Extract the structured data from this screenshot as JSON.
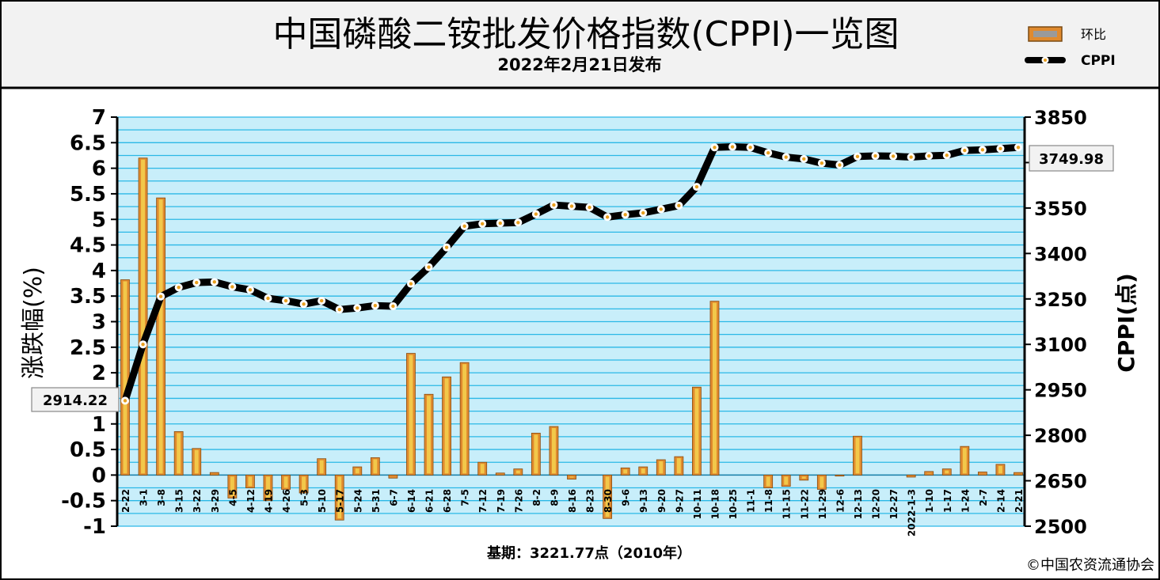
{
  "header": {
    "title": "中国磷酸二铵批发价格指数(CPPI)一览图",
    "subtitle": "2022年2月21日发布"
  },
  "legend": {
    "bar_label": "环比",
    "line_label": "CPPI",
    "position": "top-right"
  },
  "footer": {
    "base_period": "基期：3221.77点（2010年）",
    "copyright": "©中国农资流通协会"
  },
  "colors": {
    "plot_bg": "#c8eefa",
    "grid": "#2bb8e6",
    "bar_fill": "#e08a2e",
    "bar_inner": "#f2c84a",
    "line": "#000000",
    "marker_fill": "#ffffff",
    "marker_dot": "#e8a020"
  },
  "chart_data": {
    "type": "bar+line",
    "xlabels": [
      "2-22",
      "3-1",
      "3-8",
      "3-15",
      "3-22",
      "3-29",
      "4-5",
      "4-12",
      "4-19",
      "4-26",
      "5-3",
      "5-10",
      "5-17",
      "5-24",
      "5-31",
      "6-7",
      "6-14",
      "6-21",
      "6-28",
      "7-5",
      "7-12",
      "7-19",
      "7-26",
      "8-2",
      "8-9",
      "8-16",
      "8-23",
      "8-30",
      "9-6",
      "9-13",
      "9-20",
      "9-27",
      "10-11",
      "10-18",
      "10-25",
      "11-1",
      "11-8",
      "11-15",
      "11-22",
      "11-29",
      "12-6",
      "12-13",
      "12-20",
      "12-27",
      "2022-1-3",
      "1-10",
      "1-17",
      "1-24",
      "2-7",
      "2-14",
      "2-21"
    ],
    "series": [
      {
        "name": "环比",
        "axis": "left",
        "values": [
          3.82,
          6.2,
          5.42,
          0.85,
          0.52,
          0.05,
          -0.45,
          -0.25,
          -0.5,
          -0.28,
          -0.35,
          0.32,
          -0.88,
          0.16,
          0.34,
          -0.06,
          2.38,
          1.58,
          1.92,
          2.2,
          0.25,
          0.04,
          0.12,
          0.82,
          0.95,
          -0.08,
          0,
          -0.85,
          0.14,
          0.16,
          0.3,
          0.36,
          1.72,
          3.4,
          0,
          0,
          -0.25,
          -0.22,
          -0.1,
          -0.28,
          -0.02,
          0.76,
          0,
          0,
          -0.04,
          0.07,
          0.12,
          0.56,
          0.06,
          0.21,
          0.05
        ]
      },
      {
        "name": "CPPI",
        "axis": "right",
        "values": [
          2914.22,
          3100,
          3258,
          3288,
          3304,
          3306,
          3290,
          3280,
          3252,
          3244,
          3233,
          3244,
          3215,
          3220,
          3228,
          3226,
          3300,
          3355,
          3420,
          3490,
          3498,
          3500,
          3502,
          3530,
          3560,
          3556,
          3552,
          3520,
          3528,
          3534,
          3546,
          3558,
          3620,
          3750,
          3752,
          3750,
          3732,
          3718,
          3712,
          3698,
          3692,
          3720,
          3722,
          3721,
          3718,
          3722,
          3724,
          3740,
          3742,
          3746,
          3749.98
        ]
      }
    ],
    "left_axis": {
      "label": "涨跌幅(%)",
      "range": [
        -1,
        7
      ],
      "ticks": [
        "7",
        "6.5",
        "6",
        "5.5",
        "5",
        "4.5",
        "4",
        "3.5",
        "3",
        "2.5",
        "2",
        "1.5",
        "1",
        "0.5",
        "0",
        "-0.5",
        "-1"
      ]
    },
    "right_axis": {
      "label": "CPPI(点)",
      "range": [
        2500,
        3850
      ],
      "ticks": [
        "3850",
        "3700",
        "3550",
        "3400",
        "3250",
        "3100",
        "2950",
        "2800",
        "2650",
        "2500"
      ]
    },
    "callouts": {
      "first": "2914.22",
      "last": "3749.98"
    },
    "grid": true
  }
}
